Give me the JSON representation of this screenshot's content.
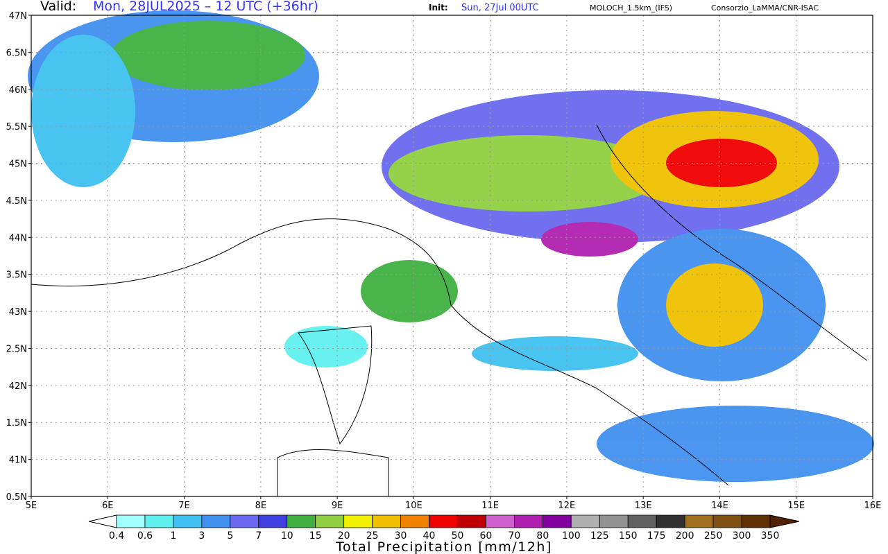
{
  "header": {
    "valid_label": "Valid:",
    "valid": "Mon, 28JUL2025 – 12 UTC (+36hr)",
    "init_label": "Init:",
    "init": "Sun, 27Jul 00UTC",
    "model": "MOLOCH_1.5km_(IFS)",
    "credit": "Consorzio_LaMMA/CNR-ISAC"
  },
  "map": {
    "lat_ticks": [
      "47N",
      "6.5N",
      "46N",
      "5.5N",
      "45N",
      "4.5N",
      "44N",
      "3.5N",
      "43N",
      "2.5N",
      "42N",
      "1.5N",
      "41N",
      "0.5N"
    ],
    "lon_ticks": [
      "5E",
      "6E",
      "7E",
      "8E",
      "9E",
      "10E",
      "11E",
      "12E",
      "13E",
      "14E",
      "15E",
      "16E"
    ]
  },
  "colorbar": {
    "title": "Total Precipitation [mm/12h]",
    "levels": [
      0.4,
      0.6,
      1,
      3,
      5,
      7,
      10,
      15,
      20,
      25,
      30,
      40,
      50,
      60,
      70,
      80,
      100,
      125,
      150,
      175,
      200,
      250,
      300,
      350
    ],
    "colors": [
      "#ffffff",
      "#a0ffff",
      "#60f0f0",
      "#40c0f0",
      "#4090f0",
      "#6a6af0",
      "#4040e0",
      "#40b040",
      "#90d040",
      "#f0f000",
      "#f0c000",
      "#f08000",
      "#f00000",
      "#c00000",
      "#d060d0",
      "#b020b0",
      "#8000a0",
      "#b0b0b0",
      "#909090",
      "#606060",
      "#303030",
      "#a07020",
      "#805010",
      "#603000",
      "#502000"
    ]
  }
}
